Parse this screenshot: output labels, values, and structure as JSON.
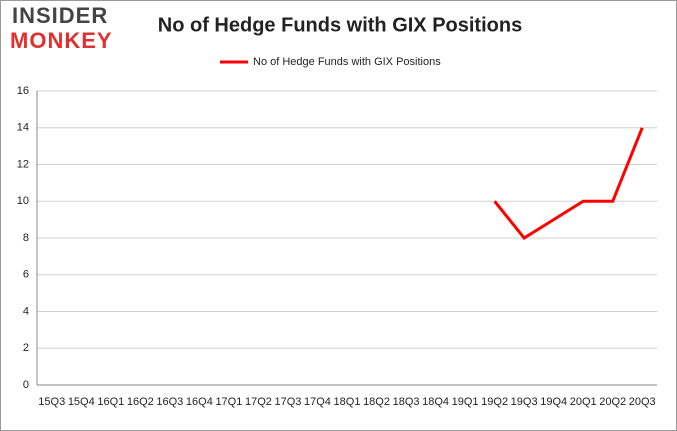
{
  "logo": {
    "line1": "INSIDER",
    "line2": "MONKEY"
  },
  "chart_data": {
    "type": "line",
    "title": "No of Hedge Funds with GIX Positions",
    "categories": [
      "15Q3",
      "15Q4",
      "16Q1",
      "16Q2",
      "16Q3",
      "16Q4",
      "17Q1",
      "17Q2",
      "17Q3",
      "17Q4",
      "18Q1",
      "18Q2",
      "18Q3",
      "18Q4",
      "19Q1",
      "19Q2",
      "19Q3",
      "19Q4",
      "20Q1",
      "20Q2",
      "20Q3"
    ],
    "series": [
      {
        "name": "No of Hedge Funds with GIX Positions",
        "color": "#ff0000",
        "values": [
          null,
          null,
          null,
          null,
          null,
          null,
          null,
          null,
          null,
          null,
          null,
          null,
          null,
          null,
          null,
          10,
          8,
          9,
          10,
          10,
          14
        ]
      }
    ],
    "ylim": [
      0,
      16
    ],
    "yticks": [
      0,
      2,
      4,
      6,
      8,
      10,
      12,
      14,
      16
    ],
    "grid": true,
    "legend": "top"
  }
}
